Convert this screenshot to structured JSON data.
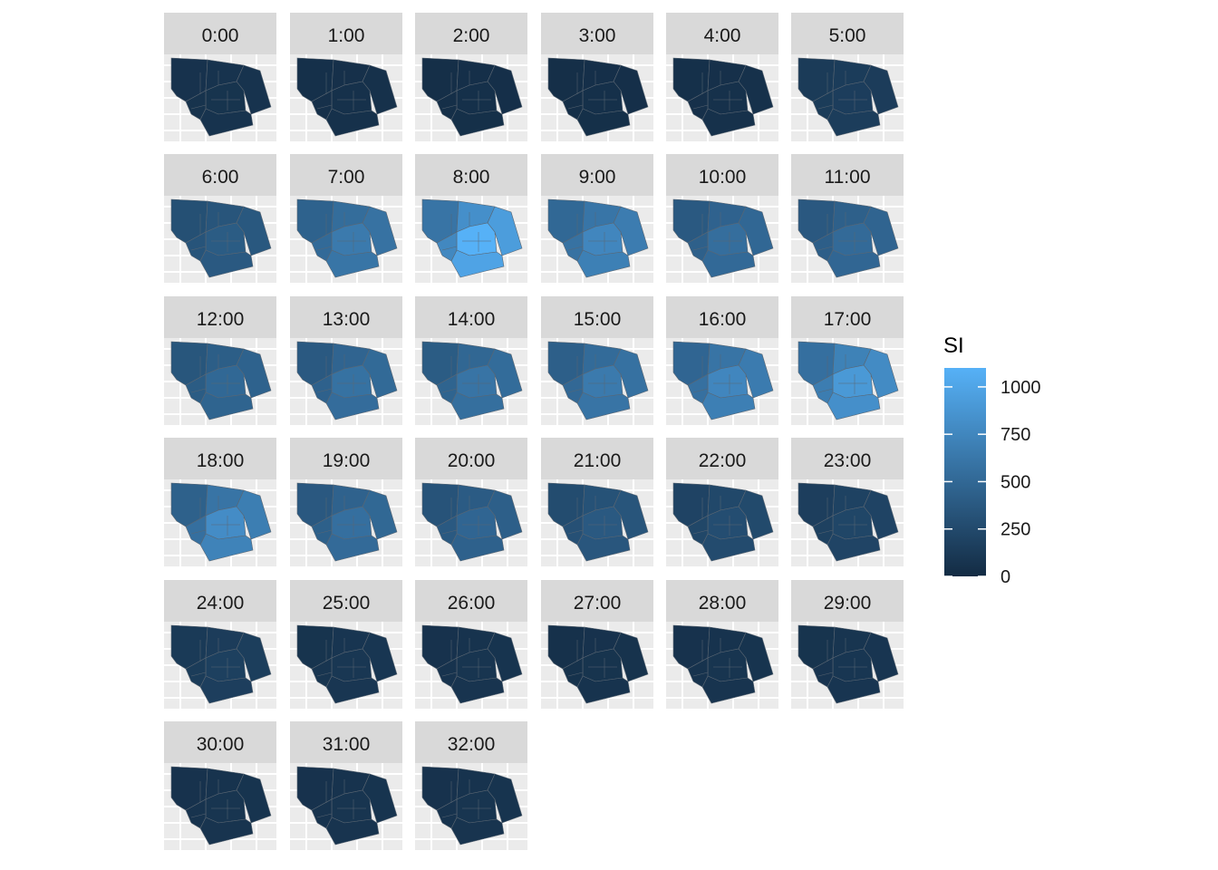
{
  "chart_data": {
    "type": "heatmap",
    "subtype": "faceted choropleth map (facet_wrap, 6 columns)",
    "title": "",
    "xlabel": "",
    "ylabel": "",
    "facets": [
      {
        "label": "0:00",
        "mean": 60,
        "hot": 70
      },
      {
        "label": "1:00",
        "mean": 40,
        "hot": 50
      },
      {
        "label": "2:00",
        "mean": 30,
        "hot": 40
      },
      {
        "label": "3:00",
        "mean": 30,
        "hot": 40
      },
      {
        "label": "4:00",
        "mean": 40,
        "hot": 50
      },
      {
        "label": "5:00",
        "mean": 130,
        "hot": 150
      },
      {
        "label": "6:00",
        "mean": 300,
        "hot": 400
      },
      {
        "label": "7:00",
        "mean": 450,
        "hot": 650
      },
      {
        "label": "8:00",
        "mean": 600,
        "hot": 1100
      },
      {
        "label": "9:00",
        "mean": 500,
        "hot": 750
      },
      {
        "label": "10:00",
        "mean": 380,
        "hot": 550
      },
      {
        "label": "11:00",
        "mean": 370,
        "hot": 520
      },
      {
        "label": "12:00",
        "mean": 350,
        "hot": 500
      },
      {
        "label": "13:00",
        "mean": 380,
        "hot": 580
      },
      {
        "label": "14:00",
        "mean": 400,
        "hot": 600
      },
      {
        "label": "15:00",
        "mean": 430,
        "hot": 650
      },
      {
        "label": "16:00",
        "mean": 480,
        "hot": 750
      },
      {
        "label": "17:00",
        "mean": 560,
        "hot": 900
      },
      {
        "label": "18:00",
        "mean": 440,
        "hot": 800
      },
      {
        "label": "19:00",
        "mean": 370,
        "hot": 560
      },
      {
        "label": "20:00",
        "mean": 330,
        "hot": 480
      },
      {
        "label": "21:00",
        "mean": 270,
        "hot": 380
      },
      {
        "label": "22:00",
        "mean": 200,
        "hot": 280
      },
      {
        "label": "23:00",
        "mean": 160,
        "hot": 220
      },
      {
        "label": "24:00",
        "mean": 120,
        "hot": 170
      },
      {
        "label": "25:00",
        "mean": 70,
        "hot": 100
      },
      {
        "label": "26:00",
        "mean": 60,
        "hot": 80
      },
      {
        "label": "27:00",
        "mean": 50,
        "hot": 70
      },
      {
        "label": "28:00",
        "mean": 60,
        "hot": 80
      },
      {
        "label": "29:00",
        "mean": 70,
        "hot": 90
      },
      {
        "label": "30:00",
        "mean": 60,
        "hot": 80
      },
      {
        "label": "31:00",
        "mean": 60,
        "hot": 80
      },
      {
        "label": "32:00",
        "mean": 60,
        "hot": 80
      }
    ],
    "legend": {
      "title": "SI",
      "placement": "right",
      "range": [
        0,
        1100
      ],
      "breaks": [
        0,
        250,
        500,
        750,
        1000
      ],
      "low_color": "#132B43",
      "high_color": "#56B1F7"
    },
    "panel_background": "#EBEBEB",
    "strip_background": "#D9D9D9",
    "grid": true
  }
}
